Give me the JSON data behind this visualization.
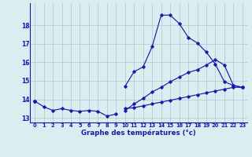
{
  "xlabel": "Graphe des températures (°c)",
  "bg_color": "#d8eef0",
  "line_color": "#1a1aaa",
  "grid_color": "#aac8cc",
  "hours": [
    0,
    1,
    2,
    3,
    4,
    5,
    6,
    7,
    8,
    9,
    10,
    11,
    12,
    13,
    14,
    15,
    16,
    17,
    18,
    19,
    20,
    21,
    22,
    23
  ],
  "line1": [
    13.9,
    13.6,
    13.4,
    13.5,
    13.4,
    13.35,
    13.4,
    13.35,
    13.1,
    13.2,
    null,
    null,
    null,
    null,
    null,
    null,
    null,
    null,
    null,
    null,
    null,
    null,
    null,
    null
  ],
  "line2": [
    13.9,
    null,
    null,
    null,
    null,
    null,
    null,
    null,
    null,
    null,
    14.7,
    15.5,
    15.75,
    16.85,
    18.55,
    18.55,
    18.1,
    17.35,
    17.05,
    16.55,
    15.9,
    14.95,
    14.75,
    14.65
  ],
  "line3": [
    13.9,
    null,
    null,
    null,
    null,
    null,
    null,
    null,
    null,
    null,
    13.4,
    13.75,
    14.05,
    14.4,
    14.65,
    14.95,
    15.2,
    15.45,
    15.6,
    15.85,
    16.15,
    15.85,
    14.75,
    14.65
  ],
  "line4": [
    13.9,
    null,
    null,
    null,
    null,
    null,
    null,
    null,
    null,
    null,
    13.5,
    13.55,
    13.65,
    13.75,
    13.85,
    13.95,
    14.05,
    14.15,
    14.25,
    14.35,
    14.45,
    14.55,
    14.65,
    14.65
  ],
  "ylim": [
    12.75,
    19.2
  ],
  "yticks": [
    13,
    14,
    15,
    16,
    17,
    18
  ],
  "xticks": [
    0,
    1,
    2,
    3,
    4,
    5,
    6,
    7,
    8,
    9,
    10,
    11,
    12,
    13,
    14,
    15,
    16,
    17,
    18,
    19,
    20,
    21,
    22,
    23
  ]
}
